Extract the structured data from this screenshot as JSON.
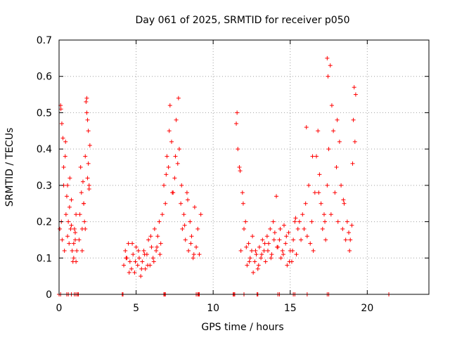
{
  "chart_data": {
    "type": "scatter",
    "title": "Day 061 of 2025, SRMTID for receiver p050",
    "xlabel": "GPS time / hours",
    "ylabel": "SRMTID / TECUs",
    "xlim": [
      0,
      24
    ],
    "ylim": [
      0,
      0.7
    ],
    "x_ticks": [
      0,
      5,
      10,
      15,
      20
    ],
    "y_ticks": [
      0,
      0.1,
      0.2,
      0.3,
      0.4,
      0.5,
      0.6,
      0.7
    ],
    "x_tick_labels": [
      "0",
      "5",
      "10",
      "15",
      "20"
    ],
    "y_tick_labels": [
      "0",
      "0.1",
      "0.2",
      "0.3",
      "0.4",
      "0.5",
      "0.6",
      "0.7"
    ],
    "grid": true,
    "marker": "+",
    "color": "#ff0000",
    "series": [
      {
        "name": "SRMTID",
        "x": [
          0.05,
          0.1,
          0.15,
          0.2,
          0.25,
          0.3,
          0.35,
          0.4,
          0.45,
          0.5,
          0.55,
          0.6,
          0.65,
          0.7,
          0.75,
          0.8,
          0.85,
          0.9,
          0.95,
          1.0,
          1.05,
          1.1,
          1.15,
          0.12,
          0.18,
          0.3,
          0.42,
          0.55,
          0.68,
          0.8,
          0.95,
          1.05,
          1.1,
          1.3,
          1.35,
          1.4,
          1.45,
          1.5,
          1.55,
          1.6,
          1.65,
          1.7,
          1.75,
          1.8,
          1.85,
          1.9,
          1.95,
          2.0,
          1.5,
          1.6,
          1.7,
          1.8,
          1.85,
          1.9,
          1.95,
          4.2,
          4.3,
          4.4,
          4.5,
          4.6,
          4.7,
          4.8,
          4.9,
          5.0,
          5.1,
          5.2,
          5.3,
          5.4,
          5.5,
          5.6,
          5.7,
          5.8,
          5.9,
          6.0,
          6.1,
          6.2,
          6.3,
          6.4,
          6.5,
          6.6,
          6.7,
          4.35,
          4.55,
          4.75,
          4.95,
          5.15,
          5.35,
          5.55,
          5.75,
          5.95,
          6.15,
          6.35,
          6.55,
          6.8,
          6.9,
          7.0,
          7.1,
          7.2,
          7.3,
          7.4,
          7.5,
          7.6,
          7.7,
          7.8,
          7.9,
          8.0,
          8.1,
          8.2,
          8.3,
          8.4,
          8.5,
          8.6,
          8.7,
          8.8,
          8.9,
          9.0,
          9.1,
          9.2,
          6.95,
          7.15,
          7.35,
          7.55,
          7.75,
          7.95,
          8.15,
          8.35,
          8.55,
          8.75,
          11.5,
          11.6,
          11.7,
          11.8,
          11.9,
          12.0,
          12.1,
          12.2,
          12.3,
          12.4,
          12.5,
          12.6,
          12.7,
          12.8,
          12.9,
          13.0,
          13.1,
          13.2,
          13.3,
          13.4,
          13.5,
          13.6,
          13.7,
          13.8,
          13.9,
          14.0,
          14.1,
          14.2,
          14.3,
          14.4,
          14.5,
          14.6,
          14.7,
          14.8,
          14.9,
          15.0,
          15.1,
          15.2,
          15.3,
          15.4,
          15.5,
          11.55,
          11.75,
          11.95,
          12.15,
          12.35,
          12.55,
          12.75,
          12.95,
          13.15,
          13.35,
          13.55,
          13.75,
          13.95,
          14.15,
          14.35,
          14.55,
          14.75,
          14.95,
          15.15,
          15.35,
          15.6,
          15.7,
          15.8,
          15.9,
          16.0,
          16.1,
          16.2,
          16.3,
          16.4,
          16.5,
          16.6,
          16.7,
          16.8,
          16.9,
          17.0,
          17.1,
          17.2,
          17.3,
          17.4,
          17.5,
          17.6,
          17.7,
          17.8,
          17.9,
          18.0,
          18.1,
          18.2,
          18.3,
          18.4,
          18.5,
          18.6,
          18.7,
          18.8,
          18.9,
          19.0,
          19.1,
          19.2,
          19.25,
          16.05,
          16.45,
          16.85,
          17.25,
          17.4,
          17.45,
          17.65,
          18.05,
          18.45,
          18.85,
          19.05,
          19.15,
          0.0,
          0.1,
          0.5,
          0.6,
          0.8,
          1.0,
          1.1,
          1.2,
          1.25,
          4.1,
          4.15,
          6.8,
          6.85,
          6.9,
          8.9,
          9.0,
          9.05,
          9.1,
          11.3,
          11.35,
          11.4,
          12.0,
          12.85,
          12.9,
          14.2,
          14.3,
          15.2,
          15.3,
          16.1,
          17.4,
          17.5,
          21.4
        ],
        "y": [
          0.18,
          0.52,
          0.2,
          0.15,
          0.43,
          0.3,
          0.12,
          0.38,
          0.22,
          0.27,
          0.16,
          0.2,
          0.14,
          0.32,
          0.18,
          0.26,
          0.12,
          0.09,
          0.1,
          0.18,
          0.15,
          0.22,
          0.12,
          0.51,
          0.47,
          0.35,
          0.42,
          0.3,
          0.24,
          0.19,
          0.14,
          0.17,
          0.09,
          0.15,
          0.22,
          0.35,
          0.28,
          0.18,
          0.31,
          0.25,
          0.2,
          0.38,
          0.53,
          0.5,
          0.32,
          0.45,
          0.29,
          0.41,
          0.12,
          0.25,
          0.18,
          0.54,
          0.48,
          0.36,
          0.3,
          0.08,
          0.12,
          0.1,
          0.14,
          0.09,
          0.07,
          0.11,
          0.06,
          0.13,
          0.08,
          0.1,
          0.05,
          0.09,
          0.12,
          0.07,
          0.11,
          0.15,
          0.08,
          0.13,
          0.1,
          0.18,
          0.12,
          0.16,
          0.2,
          0.14,
          0.22,
          0.1,
          0.06,
          0.14,
          0.09,
          0.12,
          0.07,
          0.11,
          0.08,
          0.16,
          0.09,
          0.13,
          0.11,
          0.3,
          0.25,
          0.38,
          0.35,
          0.52,
          0.42,
          0.28,
          0.32,
          0.48,
          0.36,
          0.4,
          0.25,
          0.18,
          0.22,
          0.15,
          0.28,
          0.12,
          0.2,
          0.16,
          0.1,
          0.24,
          0.13,
          0.18,
          0.11,
          0.22,
          0.33,
          0.45,
          0.28,
          0.38,
          0.54,
          0.3,
          0.19,
          0.26,
          0.14,
          0.11,
          0.47,
          0.4,
          0.35,
          0.12,
          0.28,
          0.18,
          0.2,
          0.08,
          0.14,
          0.1,
          0.12,
          0.06,
          0.09,
          0.11,
          0.07,
          0.13,
          0.1,
          0.15,
          0.12,
          0.09,
          0.16,
          0.14,
          0.18,
          0.11,
          0.2,
          0.17,
          0.27,
          0.13,
          0.15,
          0.1,
          0.12,
          0.19,
          0.14,
          0.08,
          0.17,
          0.12,
          0.09,
          0.15,
          0.2,
          0.11,
          0.18,
          0.5,
          0.34,
          0.25,
          0.13,
          0.09,
          0.16,
          0.12,
          0.08,
          0.11,
          0.14,
          0.12,
          0.1,
          0.15,
          0.13,
          0.18,
          0.11,
          0.16,
          0.09,
          0.12,
          0.21,
          0.2,
          0.15,
          0.22,
          0.18,
          0.25,
          0.16,
          0.3,
          0.14,
          0.2,
          0.12,
          0.28,
          0.38,
          0.45,
          0.33,
          0.25,
          0.18,
          0.22,
          0.15,
          0.3,
          0.4,
          0.63,
          0.52,
          0.45,
          0.28,
          0.35,
          0.2,
          0.42,
          0.3,
          0.18,
          0.25,
          0.15,
          0.2,
          0.17,
          0.15,
          0.19,
          0.48,
          0.42,
          0.55,
          0.46,
          0.38,
          0.28,
          0.2,
          0.65,
          0.6,
          0.22,
          0.48,
          0.26,
          0.12,
          0.36,
          0.57,
          0,
          0,
          0,
          0,
          0,
          0,
          0,
          0,
          0,
          0,
          0,
          0,
          0,
          0,
          0,
          0,
          0,
          0,
          0,
          0,
          0,
          0,
          0,
          0,
          0,
          0,
          0,
          0,
          0,
          0,
          0,
          0
        ]
      }
    ]
  }
}
